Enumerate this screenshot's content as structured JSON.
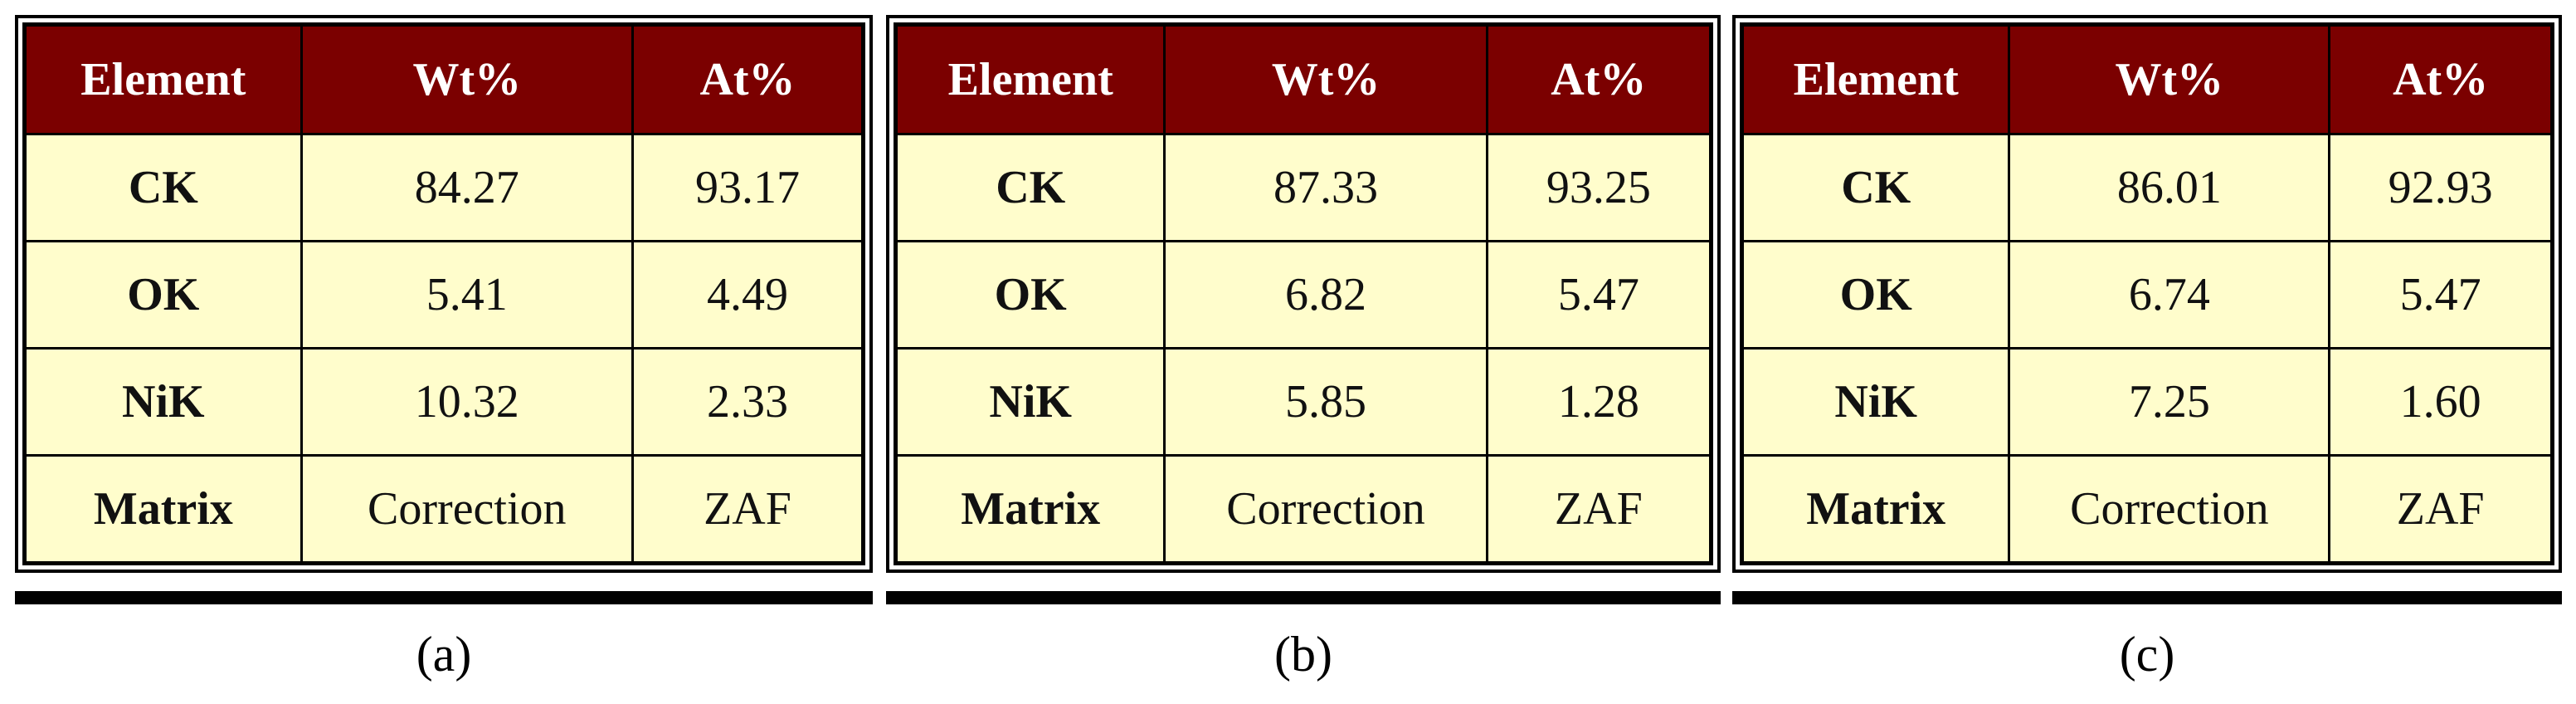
{
  "tables": [
    {
      "headers": [
        "Element",
        "Wt%",
        "At%"
      ],
      "rows": [
        [
          "CK",
          "84.27",
          "93.17"
        ],
        [
          "OK",
          "5.41",
          "4.49"
        ],
        [
          "NiK",
          "10.32",
          "2.33"
        ],
        [
          "Matrix",
          "Correction",
          "ZAF"
        ]
      ],
      "caption": "(a)"
    },
    {
      "headers": [
        "Element",
        "Wt%",
        "At%"
      ],
      "rows": [
        [
          "CK",
          "87.33",
          "93.25"
        ],
        [
          "OK",
          "6.82",
          "5.47"
        ],
        [
          "NiK",
          "5.85",
          "1.28"
        ],
        [
          "Matrix",
          "Correction",
          "ZAF"
        ]
      ],
      "caption": "(b)"
    },
    {
      "headers": [
        "Element",
        "Wt%",
        "At%"
      ],
      "rows": [
        [
          "CK",
          "86.01",
          "92.93"
        ],
        [
          "OK",
          "6.74",
          "5.47"
        ],
        [
          "NiK",
          "7.25",
          "1.60"
        ],
        [
          "Matrix",
          "Correction",
          "ZAF"
        ]
      ],
      "caption": "(c)"
    }
  ]
}
